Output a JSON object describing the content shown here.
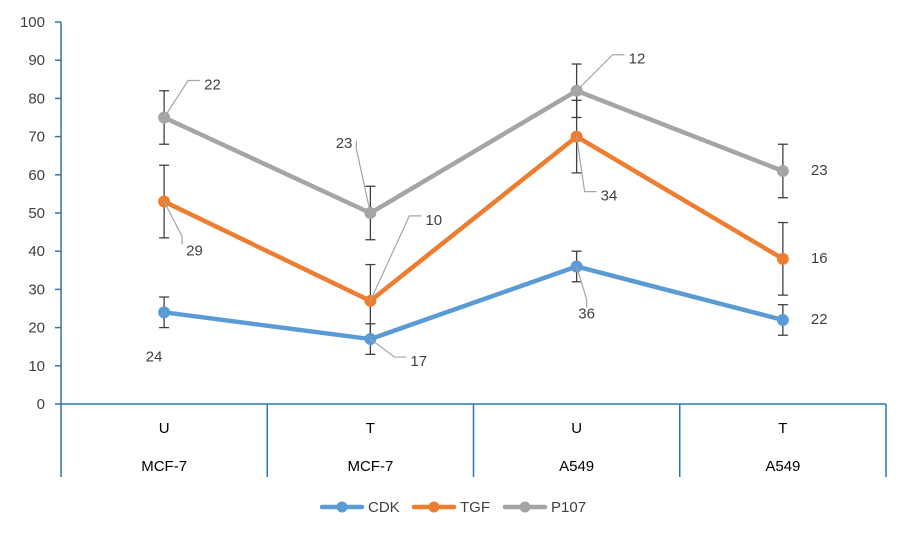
{
  "chart_data": {
    "type": "line",
    "categories": [
      {
        "level1": "U",
        "level2": "MCF-7"
      },
      {
        "level1": "T",
        "level2": "MCF-7"
      },
      {
        "level1": "U",
        "level2": "A549"
      },
      {
        "level1": "T",
        "level2": "A549"
      }
    ],
    "ylim": [
      0,
      100
    ],
    "yticks": [
      0,
      10,
      20,
      30,
      40,
      50,
      60,
      70,
      80,
      90,
      100
    ],
    "grid": false,
    "legend_position": "bottom",
    "series": [
      {
        "name": "CDK",
        "color": "#5B9BD5",
        "values": [
          24,
          17,
          36,
          22
        ],
        "error": [
          4,
          4,
          4,
          4
        ],
        "labels": [
          "24",
          "17",
          "36",
          "22"
        ]
      },
      {
        "name": "TGF",
        "color": "#ED7D31",
        "values": [
          53,
          27,
          70,
          38
        ],
        "error": [
          9.5,
          9.5,
          9.5,
          9.5
        ],
        "labels": [
          "29",
          "10",
          "34",
          "16"
        ]
      },
      {
        "name": "P107",
        "color": "#A5A5A5",
        "values": [
          75,
          50,
          82,
          61
        ],
        "error": [
          7,
          7,
          7,
          7
        ],
        "labels": [
          "22",
          "23",
          "12",
          "23"
        ]
      }
    ]
  }
}
